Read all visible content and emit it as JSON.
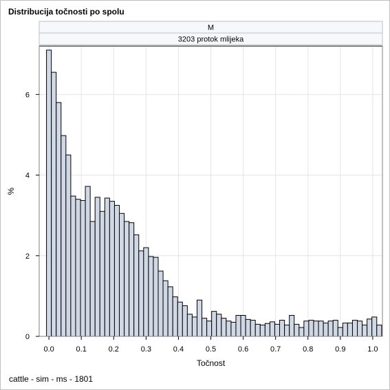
{
  "chart_data": {
    "type": "bar",
    "title": "Distribucija točnosti po spolu",
    "panel_headers": [
      "M",
      "3203 protok mlijeka"
    ],
    "xlabel": "Točnost",
    "ylabel": "%",
    "xlim": [
      -0.03,
      1.03
    ],
    "ylim": [
      0,
      7.2
    ],
    "xticks": [
      0.0,
      0.1,
      0.2,
      0.3,
      0.4,
      0.5,
      0.6,
      0.7,
      0.8,
      0.9,
      1.0
    ],
    "xtick_labels": [
      "0.0",
      "0.1",
      "0.2",
      "0.3",
      "0.4",
      "0.5",
      "0.6",
      "0.7",
      "0.8",
      "0.9",
      "1.0"
    ],
    "yticks": [
      0,
      2,
      4,
      6
    ],
    "ytick_labels": [
      "0",
      "2",
      "4",
      "6"
    ],
    "grid": true,
    "bin_width": 0.015,
    "bin_start": 0.0,
    "bar_color": "#cfd8e4",
    "values": [
      7.1,
      6.55,
      5.8,
      4.98,
      4.5,
      3.48,
      3.4,
      3.37,
      3.72,
      2.85,
      3.45,
      3.1,
      3.43,
      3.35,
      3.25,
      3.05,
      2.85,
      2.82,
      2.52,
      2.12,
      2.2,
      1.98,
      1.96,
      1.62,
      1.38,
      1.23,
      0.98,
      0.85,
      0.76,
      0.55,
      0.48,
      0.9,
      0.45,
      0.38,
      0.62,
      0.55,
      0.45,
      0.38,
      0.35,
      0.52,
      0.52,
      0.42,
      0.4,
      0.3,
      0.28,
      0.32,
      0.36,
      0.3,
      0.4,
      0.28,
      0.52,
      0.3,
      0.22,
      0.38,
      0.4,
      0.38,
      0.38,
      0.33,
      0.38,
      0.4,
      0.22,
      0.33,
      0.33,
      0.4,
      0.38,
      0.28,
      0.43,
      0.48,
      0.28
    ]
  },
  "footnote": "cattle - sim - ms - 1801"
}
